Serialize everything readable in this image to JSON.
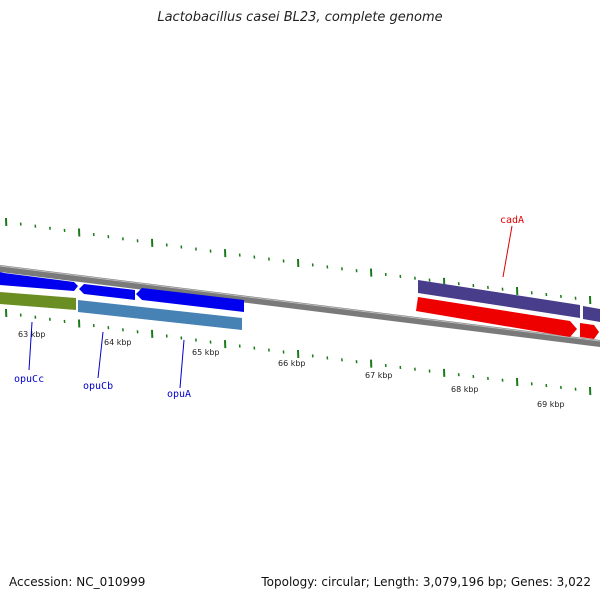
{
  "title": "Lactobacillus casei BL23, complete genome",
  "footer": {
    "accession": "Accession: NC_010999",
    "summary": "Topology: circular; Length: 3,079,196 bp; Genes: 3,022"
  },
  "kbp_labels": [
    "63 kbp",
    "64 kbp",
    "65 kbp",
    "66 kbp",
    "67 kbp",
    "68 kbp",
    "69 kbp"
  ],
  "genes": [
    {
      "name": "opuCc",
      "color": "#0000cc",
      "feature_color": "#6b8e23"
    },
    {
      "name": "opuCb",
      "color": "#0000cc",
      "feature_color": "#4682b4"
    },
    {
      "name": "opuA",
      "color": "#0000cc",
      "feature_color": "#0000ee"
    },
    {
      "name": "cadA",
      "color": "#dd0000",
      "feature_color": "#ee0000"
    }
  ],
  "colors": {
    "backbone": "#7a7a7a",
    "tick": "#1a7a1a",
    "forward_blue": "#0000ee",
    "olive": "#6b8e23",
    "steelblue": "#4682b4",
    "slate": "#483d8b",
    "red": "#ee0000"
  }
}
